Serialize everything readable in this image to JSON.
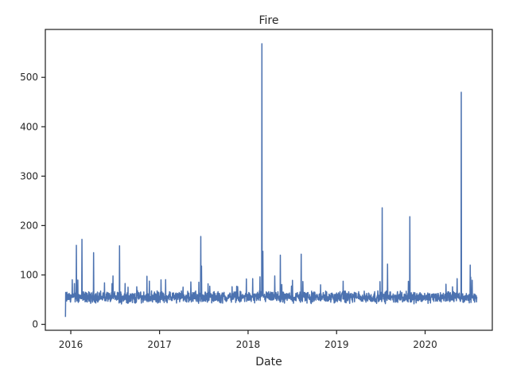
{
  "chart_data": {
    "type": "line",
    "title": "Fire",
    "xlabel": "Date",
    "ylabel": "",
    "xlim": [
      "2015-09-18",
      "2020-10-04"
    ],
    "ylim": [
      -12,
      597
    ],
    "x_ticks": [
      "2016",
      "2017",
      "2018",
      "2019",
      "2020"
    ],
    "x_tick_dates": [
      "2016-01-01",
      "2017-01-01",
      "2018-01-01",
      "2019-01-01",
      "2020-01-01"
    ],
    "y_ticks": [
      0,
      100,
      200,
      300,
      400,
      500
    ],
    "grid": false,
    "legend": "none",
    "series": [
      {
        "color": "#4c72b0",
        "date_range": [
          "2015-12-10",
          "2020-08-01"
        ],
        "baseline_range": [
          35,
          75
        ],
        "peaks": [
          {
            "x": "2015-12-10",
            "y": 15
          },
          {
            "x": "2016-01-24",
            "y": 160
          },
          {
            "x": "2016-02-16",
            "y": 172
          },
          {
            "x": "2016-04-04",
            "y": 145
          },
          {
            "x": "2016-07-20",
            "y": 159
          },
          {
            "x": "2017-06-20",
            "y": 178
          },
          {
            "x": "2017-06-23",
            "y": 118
          },
          {
            "x": "2018-02-27",
            "y": 568
          },
          {
            "x": "2018-03-03",
            "y": 148
          },
          {
            "x": "2018-05-14",
            "y": 140
          },
          {
            "x": "2018-08-08",
            "y": 142
          },
          {
            "x": "2019-07-08",
            "y": 236
          },
          {
            "x": "2019-07-30",
            "y": 122
          },
          {
            "x": "2019-10-30",
            "y": 218
          },
          {
            "x": "2020-05-29",
            "y": 470
          },
          {
            "x": "2020-07-05",
            "y": 120
          }
        ]
      }
    ]
  }
}
